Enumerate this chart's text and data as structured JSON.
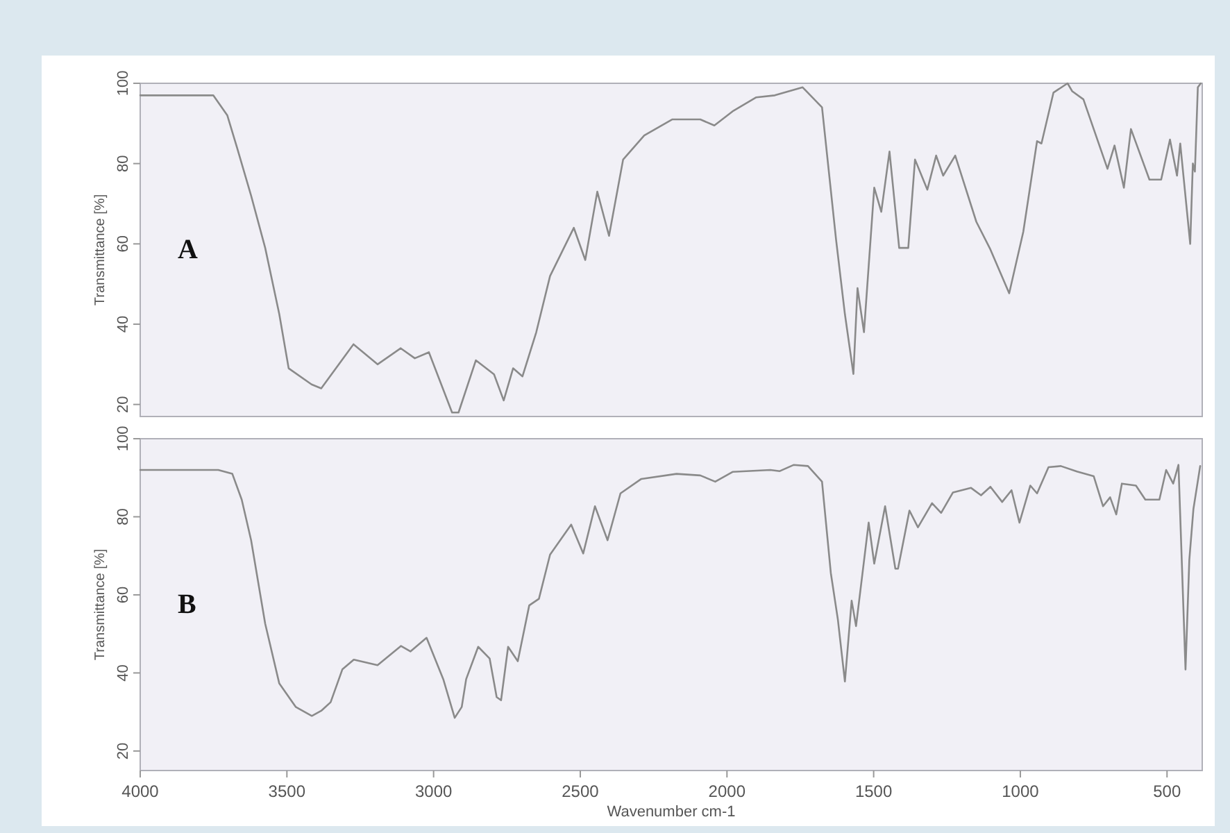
{
  "chart_data": [
    {
      "type": "line",
      "ylabel": "Transmittance [%]",
      "annotations": [
        "A"
      ],
      "tick_labels": "y",
      "xlim": [
        4000,
        380
      ],
      "ylim": [
        17,
        100
      ],
      "yticks": [
        20,
        40,
        60,
        80,
        100
      ],
      "x": [
        4000,
        3751,
        3703,
        3670,
        3622,
        3574,
        3526,
        3494,
        3416,
        3383,
        3273,
        3191,
        3112,
        3064,
        3016,
        2937,
        2915,
        2856,
        2794,
        2761,
        2729,
        2697,
        2650,
        2603,
        2522,
        2483,
        2442,
        2402,
        2354,
        2282,
        2187,
        2091,
        2043,
        1981,
        1900,
        1837,
        1742,
        1676,
        1628,
        1598,
        1569,
        1555,
        1533,
        1498,
        1474,
        1446,
        1413,
        1382,
        1359,
        1317,
        1287,
        1263,
        1222,
        1150,
        1102,
        1038,
        990,
        943,
        928,
        887,
        839,
        823,
        785,
        703,
        679,
        647,
        623,
        560,
        520,
        490,
        466,
        455,
        421,
        412,
        405,
        395,
        385
      ],
      "series": [
        {
          "color": "#8a8a8a",
          "values": [
            97,
            97,
            92,
            84,
            72,
            59,
            42.5,
            29,
            25,
            24,
            35,
            30,
            34,
            31.5,
            33,
            18,
            18,
            31,
            27.5,
            21,
            29,
            27,
            38,
            52,
            64,
            56,
            73,
            62,
            81,
            87,
            91,
            91,
            89.5,
            93,
            96.5,
            97,
            99,
            94,
            61,
            42.5,
            27.6,
            49,
            38,
            74,
            68,
            83,
            59,
            59,
            81,
            73.5,
            82,
            77,
            82,
            65.5,
            58.6,
            47.7,
            63,
            85.6,
            85,
            97.7,
            100,
            98,
            96,
            78.7,
            84.5,
            74,
            88.6,
            76,
            76,
            86,
            77,
            85,
            60,
            80,
            78,
            99,
            100
          ]
        }
      ]
    },
    {
      "type": "line",
      "ylabel": "Transmittance [%]",
      "xlabel": "Wavenumber cm-1",
      "annotations": [
        "B"
      ],
      "xlim": [
        4000,
        380
      ],
      "xticks": [
        4000,
        3500,
        3000,
        2500,
        2000,
        1500,
        1000,
        500
      ],
      "ylim": [
        15,
        100
      ],
      "yticks": [
        20,
        40,
        60,
        80,
        100
      ],
      "x": [
        4000,
        3734,
        3686,
        3654,
        3622,
        3574,
        3526,
        3470,
        3415,
        3383,
        3351,
        3311,
        3272,
        3191,
        3111,
        3079,
        3024,
        2967,
        2928,
        2904,
        2889,
        2848,
        2809,
        2785,
        2770,
        2746,
        2713,
        2674,
        2641,
        2603,
        2531,
        2490,
        2450,
        2407,
        2363,
        2292,
        2172,
        2091,
        2040,
        1981,
        1852,
        1820,
        1772,
        1724,
        1676,
        1646,
        1622,
        1598,
        1575,
        1560,
        1517,
        1498,
        1461,
        1426,
        1417,
        1378,
        1349,
        1301,
        1270,
        1230,
        1168,
        1134,
        1102,
        1062,
        1030,
        1003,
        966,
        943,
        904,
        862,
        807,
        750,
        718,
        694,
        673,
        654,
        606,
        574,
        526,
        503,
        479,
        461,
        437,
        424,
        410,
        387
      ],
      "series": [
        {
          "color": "#8a8a8a",
          "values": [
            92,
            92,
            91,
            84.4,
            74,
            52.6,
            37.3,
            31.3,
            29,
            30.3,
            32.5,
            40.9,
            43.4,
            42,
            46.9,
            45.5,
            49,
            38.4,
            28.5,
            31.3,
            38.4,
            46.7,
            43.7,
            33.8,
            33,
            46.7,
            43,
            57.3,
            59,
            70.3,
            78,
            70.6,
            82.7,
            74,
            86,
            89.7,
            91,
            90.6,
            89,
            91.5,
            92,
            91.7,
            93.3,
            93,
            89,
            65.6,
            53.7,
            37.8,
            58.5,
            52,
            78.5,
            68,
            82.7,
            66.7,
            66.7,
            81.6,
            77.3,
            83.5,
            81,
            86.2,
            87.4,
            85.5,
            87.7,
            83.8,
            86.8,
            78.5,
            88,
            86,
            92.7,
            93,
            91.6,
            90.4,
            82.7,
            85,
            80.6,
            88.5,
            88,
            84.4,
            84.4,
            92,
            88.5,
            93.3,
            40.9,
            69,
            82,
            93
          ]
        }
      ]
    }
  ]
}
